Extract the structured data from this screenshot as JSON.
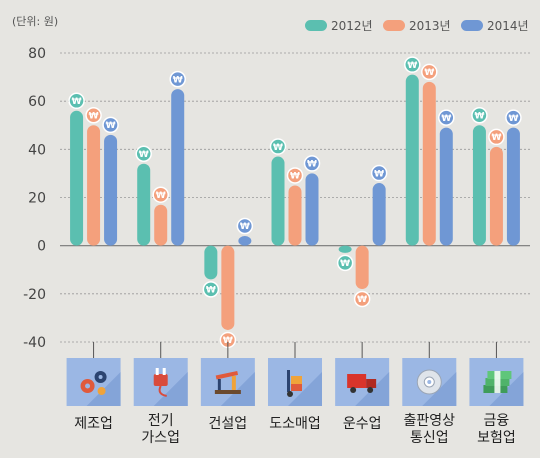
{
  "chart_data": {
    "type": "bar",
    "unit_label": "(단위: 원)",
    "categories": [
      [
        "제조업"
      ],
      [
        "전기",
        "가스업"
      ],
      [
        "건설업"
      ],
      [
        "도소매업"
      ],
      [
        "운수업"
      ],
      [
        "출판영상",
        "통신업"
      ],
      [
        "금융",
        "보험업"
      ]
    ],
    "series": [
      {
        "name": "2012년",
        "color": "#5bbfb0",
        "values": [
          56,
          34,
          -14,
          37,
          -3,
          71,
          50
        ]
      },
      {
        "name": "2013년",
        "color": "#f4a07c",
        "values": [
          50,
          17,
          -35,
          25,
          -18,
          68,
          41
        ]
      },
      {
        "name": "2014년",
        "color": "#6f97d4",
        "values": [
          46,
          65,
          4,
          30,
          26,
          49,
          49
        ]
      }
    ],
    "ylim": [
      -40,
      80
    ],
    "yticks": [
      80,
      60,
      40,
      20,
      0,
      -20,
      -40
    ],
    "grid": true,
    "legend_position": "top-right",
    "marker_symbol": "₩",
    "category_icons": [
      "gears-icon",
      "electric-plug-icon",
      "oil-pump-icon",
      "hand-truck-icon",
      "delivery-truck-icon",
      "disc-icon",
      "money-stack-icon"
    ],
    "icon_tile_color": "#9bb7e4"
  }
}
